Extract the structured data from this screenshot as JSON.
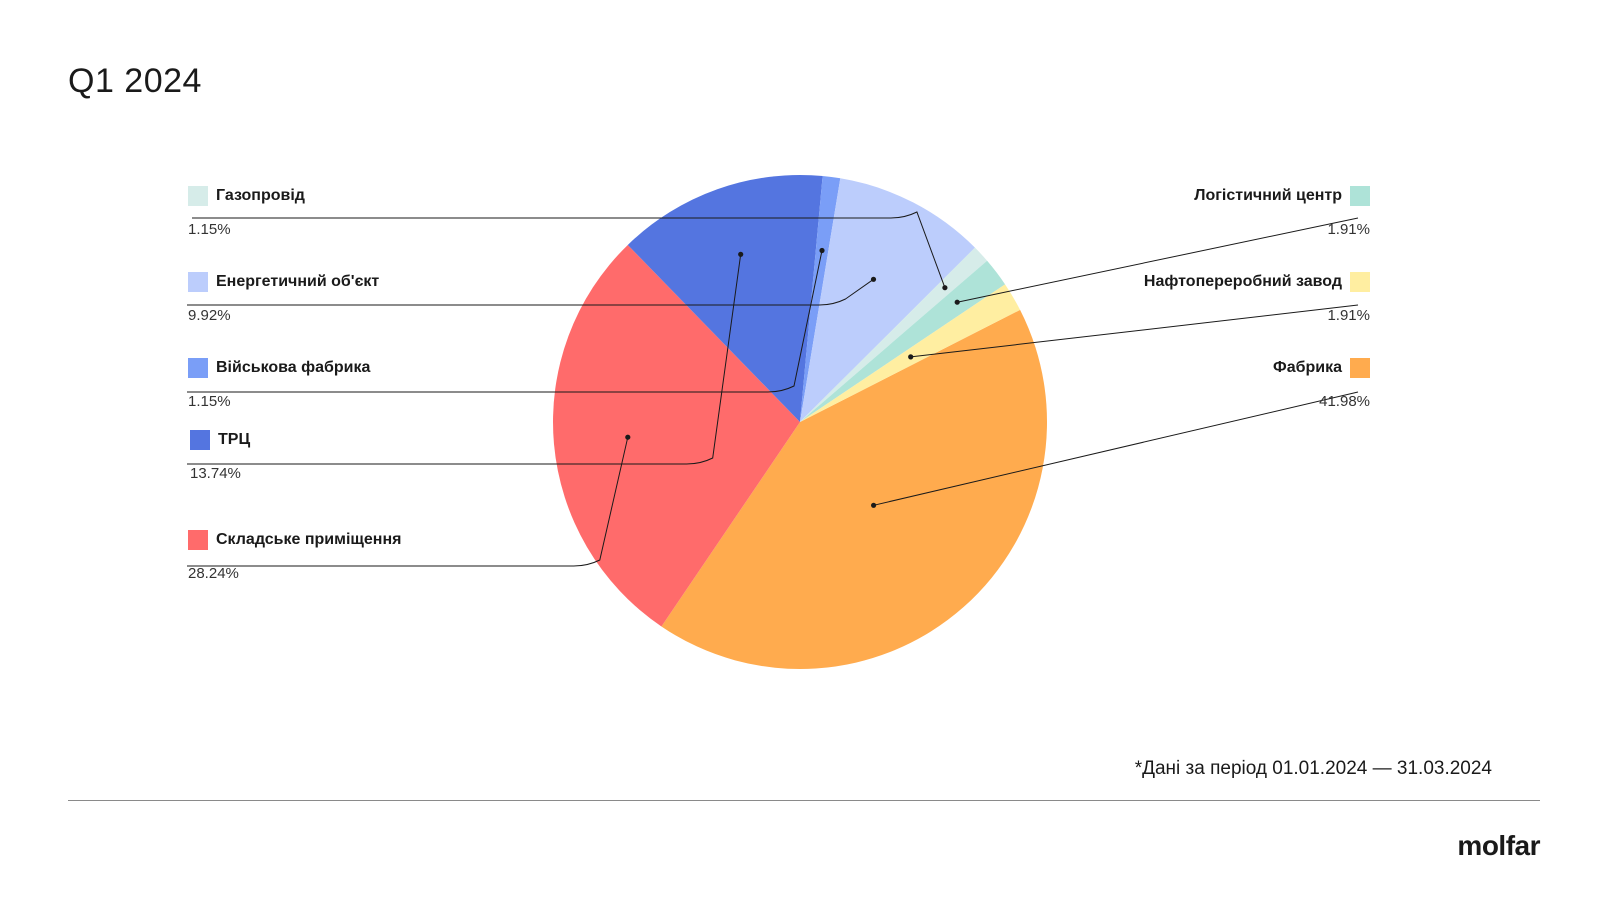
{
  "title": "Q1 2024",
  "footnote": "*Дані за період 01.01.2024 — 31.03.2024",
  "logo": "molfar",
  "chart_data": {
    "type": "pie",
    "title": "Q1 2024",
    "legend": "sides",
    "slices": [
      {
        "label": "Фабрика",
        "value": 41.98,
        "pct_label": "41.98%",
        "color": "#ffab4e"
      },
      {
        "label": "Складське приміщення",
        "value": 28.24,
        "pct_label": "28.24%",
        "color": "#ff6b6b"
      },
      {
        "label": "ТРЦ",
        "value": 13.74,
        "pct_label": "13.74%",
        "color": "#5475e0"
      },
      {
        "label": "Військова фабрика",
        "value": 1.15,
        "pct_label": "1.15%",
        "color": "#7a9ef7"
      },
      {
        "label": "Енергетичний об'єкт",
        "value": 9.92,
        "pct_label": "9.92%",
        "color": "#bccdfc"
      },
      {
        "label": "Газопровід",
        "value": 1.15,
        "pct_label": "1.15%",
        "color": "#d6ece9"
      },
      {
        "label": "Логістичний центр",
        "value": 1.91,
        "pct_label": "1.91%",
        "color": "#aee3d8"
      },
      {
        "label": "Нафтопереробний завод",
        "value": 1.91,
        "pct_label": "1.91%",
        "color": "#ffeea1"
      }
    ]
  }
}
